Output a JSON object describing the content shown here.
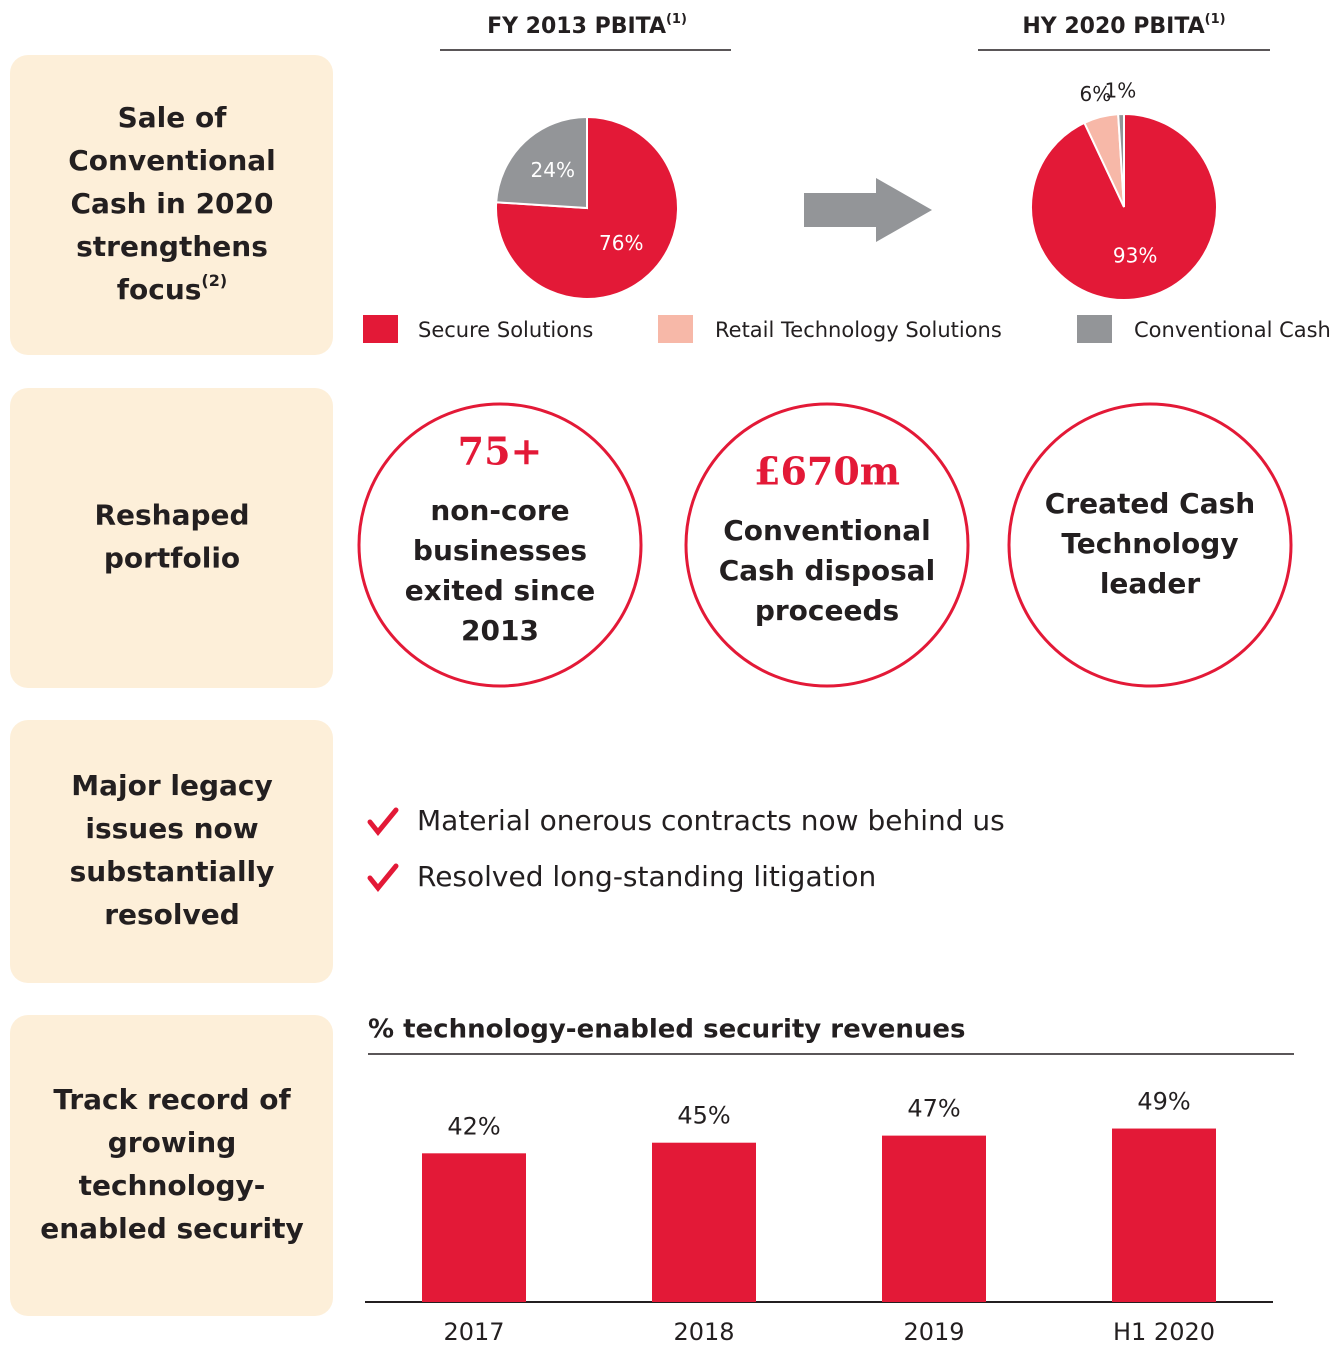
{
  "sections": [
    {
      "lines": [
        "Sale of",
        "Conventional",
        "Cash in 2020",
        "strengthens",
        "focus"
      ],
      "sup": "(2)"
    },
    {
      "lines": [
        "Reshaped",
        "portfolio"
      ]
    },
    {
      "lines": [
        "Major legacy",
        "issues now",
        "substantially",
        "resolved"
      ]
    },
    {
      "lines": [
        "Track record of",
        "growing",
        "technology-",
        "enabled security"
      ]
    }
  ],
  "chart_data": [
    {
      "type": "pie",
      "title": "FY 2013 PBITA",
      "title_sup": "(1)",
      "categories": [
        "Secure Solutions",
        "Conventional Cash"
      ],
      "values": [
        76,
        24
      ],
      "value_labels": [
        "76%",
        "24%"
      ],
      "colors": [
        "#e31937",
        "#939598"
      ]
    },
    {
      "type": "pie",
      "title": "HY 2020 PBITA",
      "title_sup": "(1)",
      "categories": [
        "Secure Solutions",
        "Retail Technology Solutions",
        "Conventional Cash"
      ],
      "values": [
        93,
        6,
        1
      ],
      "value_labels": [
        "93%",
        "6%",
        "1%"
      ],
      "colors": [
        "#e31937",
        "#f7b8a8",
        "#939598"
      ]
    },
    {
      "type": "bar",
      "title": "% technology-enabled security revenues",
      "categories": [
        "2017",
        "2018",
        "2019",
        "H1 2020"
      ],
      "values": [
        42,
        45,
        47,
        49
      ],
      "value_labels": [
        "42%",
        "45%",
        "47%",
        "49%"
      ],
      "color": "#e31937"
    }
  ],
  "legend": {
    "items": [
      {
        "name": "Secure Solutions",
        "color": "#e31937"
      },
      {
        "name": "Retail Technology Solutions",
        "color": "#f7b8a8"
      },
      {
        "name": "Conventional Cash",
        "color": "#939598"
      }
    ]
  },
  "circles": [
    {
      "headline": "75+",
      "lines": [
        "non-core",
        "businesses",
        "exited since",
        "2013"
      ]
    },
    {
      "headline": "£670m",
      "lines": [
        "Conventional",
        "Cash disposal",
        "proceeds"
      ]
    },
    {
      "lines": [
        "Created Cash",
        "Technology",
        "leader"
      ]
    }
  ],
  "bullets": [
    "Material onerous contracts now behind us",
    "Resolved long-standing litigation"
  ]
}
